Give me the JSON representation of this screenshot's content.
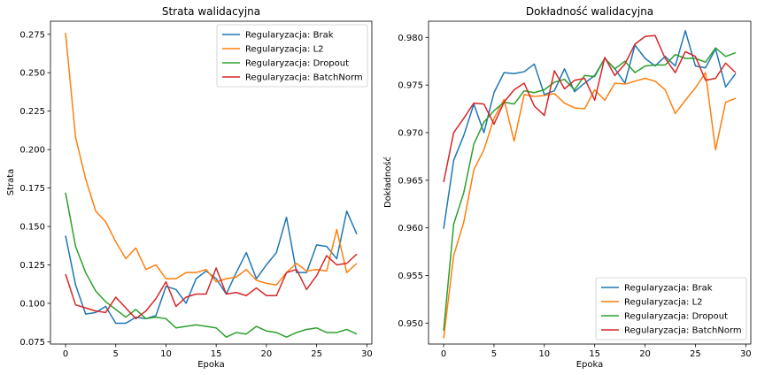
{
  "chart_data": [
    {
      "type": "line",
      "title": "Strata walidacyjna",
      "xlabel": "Epoka",
      "ylabel": "Strata",
      "xlim": [
        -1.5,
        30.5
      ],
      "ylim": [
        0.0735,
        0.2835
      ],
      "xticks": [
        0,
        5,
        10,
        15,
        20,
        25,
        30
      ],
      "yticks": [
        0.075,
        0.1,
        0.125,
        0.15,
        0.175,
        0.2,
        0.225,
        0.25,
        0.275
      ],
      "ytick_labels": [
        "0.075",
        "0.100",
        "0.125",
        "0.150",
        "0.175",
        "0.200",
        "0.225",
        "0.250",
        "0.275"
      ],
      "legend_position": "upper right",
      "x": [
        0,
        1,
        2,
        3,
        4,
        5,
        6,
        7,
        8,
        9,
        10,
        11,
        12,
        13,
        14,
        15,
        16,
        17,
        18,
        19,
        20,
        21,
        22,
        23,
        24,
        25,
        26,
        27,
        28,
        29
      ],
      "series": [
        {
          "name": "Regularyzacja: Brak",
          "color": "#1f77b4",
          "values": [
            0.144,
            0.112,
            0.093,
            0.094,
            0.098,
            0.087,
            0.087,
            0.091,
            0.09,
            0.092,
            0.111,
            0.109,
            0.1,
            0.116,
            0.121,
            0.116,
            0.106,
            0.12,
            0.133,
            0.116,
            0.125,
            0.133,
            0.156,
            0.12,
            0.12,
            0.138,
            0.137,
            0.129,
            0.16,
            0.145
          ]
        },
        {
          "name": "Regularyzacja: L2",
          "color": "#ff7f0e",
          "values": [
            0.276,
            0.208,
            0.181,
            0.16,
            0.153,
            0.14,
            0.129,
            0.136,
            0.122,
            0.125,
            0.116,
            0.116,
            0.12,
            0.12,
            0.122,
            0.114,
            0.116,
            0.117,
            0.122,
            0.115,
            0.113,
            0.112,
            0.12,
            0.126,
            0.121,
            0.122,
            0.121,
            0.148,
            0.12,
            0.126
          ]
        },
        {
          "name": "Regularyzacja: Dropout",
          "color": "#2ca02c",
          "values": [
            0.172,
            0.137,
            0.12,
            0.108,
            0.101,
            0.096,
            0.091,
            0.096,
            0.09,
            0.091,
            0.09,
            0.084,
            0.085,
            0.086,
            0.085,
            0.084,
            0.078,
            0.081,
            0.08,
            0.085,
            0.082,
            0.081,
            0.078,
            0.081,
            0.083,
            0.084,
            0.081,
            0.081,
            0.083,
            0.08
          ]
        },
        {
          "name": "Regularyzacja: BatchNorm",
          "color": "#d62728",
          "values": [
            0.119,
            0.099,
            0.097,
            0.095,
            0.094,
            0.104,
            0.097,
            0.09,
            0.095,
            0.103,
            0.114,
            0.098,
            0.104,
            0.106,
            0.106,
            0.123,
            0.106,
            0.107,
            0.105,
            0.11,
            0.105,
            0.105,
            0.12,
            0.122,
            0.109,
            0.118,
            0.131,
            0.125,
            0.126,
            0.132
          ]
        }
      ]
    },
    {
      "type": "line",
      "title": "Dokładność walidacyjna",
      "xlabel": "Epoka",
      "ylabel": "Dokładność",
      "xlim": [
        -1.5,
        30.5
      ],
      "ylim": [
        0.9478,
        0.9817
      ],
      "xticks": [
        0,
        5,
        10,
        15,
        20,
        25,
        30
      ],
      "yticks": [
        0.95,
        0.955,
        0.96,
        0.965,
        0.97,
        0.975,
        0.98
      ],
      "ytick_labels": [
        "0.950",
        "0.955",
        "0.960",
        "0.965",
        "0.970",
        "0.975",
        "0.980"
      ],
      "legend_position": "lower right",
      "x": [
        0,
        1,
        2,
        3,
        4,
        5,
        6,
        7,
        8,
        9,
        10,
        11,
        12,
        13,
        14,
        15,
        16,
        17,
        18,
        19,
        20,
        21,
        22,
        23,
        24,
        25,
        26,
        27,
        28,
        29
      ],
      "series": [
        {
          "name": "Regularyzacja: Brak",
          "color": "#1f77b4",
          "values": [
            0.9599,
            0.9671,
            0.9697,
            0.973,
            0.97,
            0.9742,
            0.9763,
            0.9762,
            0.9764,
            0.9772,
            0.974,
            0.9744,
            0.9767,
            0.9743,
            0.9752,
            0.976,
            0.9778,
            0.9767,
            0.9752,
            0.9792,
            0.9778,
            0.977,
            0.978,
            0.977,
            0.9807,
            0.977,
            0.9768,
            0.9788,
            0.9748,
            0.9762
          ]
        },
        {
          "name": "Regularyzacja: L2",
          "color": "#ff7f0e",
          "values": [
            0.9484,
            0.9571,
            0.9606,
            0.9661,
            0.9682,
            0.9715,
            0.9735,
            0.9691,
            0.974,
            0.9738,
            0.9739,
            0.9741,
            0.9731,
            0.9726,
            0.9725,
            0.9745,
            0.9734,
            0.9752,
            0.9751,
            0.9754,
            0.9757,
            0.9754,
            0.9745,
            0.972,
            0.9734,
            0.9747,
            0.9763,
            0.9682,
            0.9732,
            0.9736
          ]
        },
        {
          "name": "Regularyzacja: Dropout",
          "color": "#2ca02c",
          "values": [
            0.9492,
            0.9604,
            0.9637,
            0.9688,
            0.9711,
            0.9723,
            0.9732,
            0.973,
            0.9744,
            0.9742,
            0.9745,
            0.9753,
            0.9756,
            0.9745,
            0.976,
            0.9759,
            0.9778,
            0.9767,
            0.9775,
            0.9763,
            0.977,
            0.9771,
            0.9771,
            0.9782,
            0.9778,
            0.9778,
            0.9774,
            0.9789,
            0.978,
            0.9784
          ]
        },
        {
          "name": "Regularyzacja: BatchNorm",
          "color": "#d62728",
          "values": [
            0.9648,
            0.97,
            0.9715,
            0.9731,
            0.973,
            0.9709,
            0.9732,
            0.9745,
            0.9752,
            0.9728,
            0.9718,
            0.9765,
            0.9746,
            0.9755,
            0.9757,
            0.9734,
            0.9779,
            0.976,
            0.9772,
            0.9793,
            0.9801,
            0.9802,
            0.9778,
            0.9763,
            0.9785,
            0.978,
            0.9755,
            0.9757,
            0.9773,
            0.9763
          ]
        }
      ]
    }
  ]
}
